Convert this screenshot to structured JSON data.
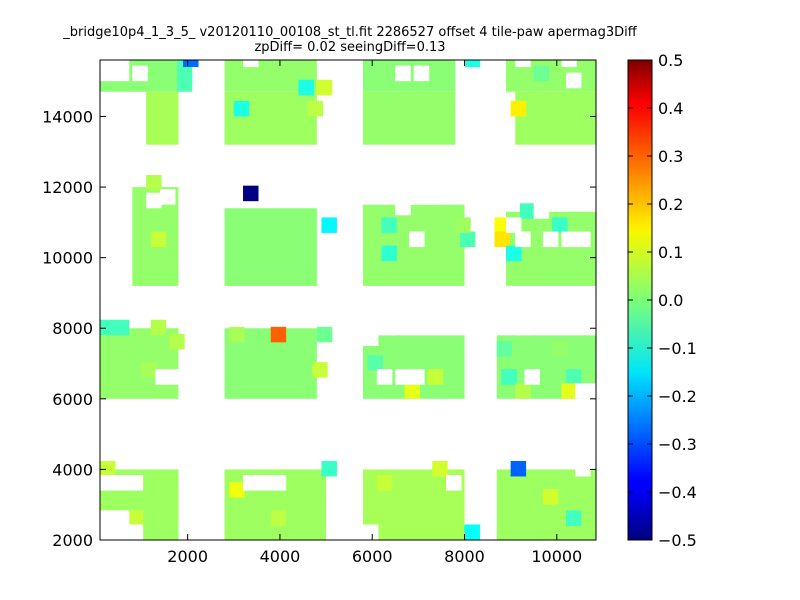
{
  "chart_data": {
    "type": "heatmap",
    "title": "_bridge10p4_1_3_5_ v20120110_00108_st_tl.fit 2286527 offset 4 tile-paw apermag3Diff",
    "subtitle": "zpDiff= 0.02 seeingDiff=0.13",
    "xlabel": "",
    "ylabel": "",
    "xlim": [
      100,
      10850
    ],
    "ylim": [
      2000,
      15600
    ],
    "x_ticks": [
      2000,
      4000,
      6000,
      8000,
      10000
    ],
    "y_ticks": [
      2000,
      4000,
      6000,
      8000,
      10000,
      12000,
      14000
    ],
    "cell_size": [
      335,
      440
    ],
    "colorbar": {
      "vmin": -0.5,
      "vmax": 0.5,
      "colormap": "jet",
      "ticks": [
        "0.5",
        "0.4",
        "0.3",
        "0.2",
        "0.1",
        "0.0",
        "−0.1",
        "−0.2",
        "−0.3",
        "−0.4",
        "−0.5"
      ]
    },
    "blocks": [
      {
        "x": [
          100,
          1770
        ],
        "y": [
          15600,
          14700
        ],
        "value": 0.01
      },
      {
        "x": [
          1770,
          2100
        ],
        "y": [
          15600,
          14700
        ],
        "value": -0.05
      },
      {
        "x": [
          2800,
          4800
        ],
        "y": [
          15600,
          14700
        ],
        "value": 0.02
      },
      {
        "x": [
          5800,
          7800
        ],
        "y": [
          15600,
          14700
        ],
        "value": 0.01
      },
      {
        "x": [
          8900,
          10850
        ],
        "y": [
          15600,
          14700
        ],
        "value": 0.02
      },
      {
        "x": [
          1100,
          1800
        ],
        "y": [
          14700,
          13200
        ],
        "value": 0.04
      },
      {
        "x": [
          2800,
          4800
        ],
        "y": [
          14700,
          13200
        ],
        "value": 0.03
      },
      {
        "x": [
          5800,
          7800
        ],
        "y": [
          14700,
          13200
        ],
        "value": 0.02
      },
      {
        "x": [
          9100,
          10850
        ],
        "y": [
          14700,
          13200
        ],
        "value": 0.03
      },
      {
        "x": [
          800,
          1800
        ],
        "y": [
          12000,
          9200
        ],
        "value": 0.02
      },
      {
        "x": [
          2800,
          4800
        ],
        "y": [
          11400,
          9200
        ],
        "value": 0.01
      },
      {
        "x": [
          5800,
          8000
        ],
        "y": [
          11500,
          9200
        ],
        "value": 0.02
      },
      {
        "x": [
          8900,
          10850
        ],
        "y": [
          11300,
          9200
        ],
        "value": 0.02
      },
      {
        "x": [
          100,
          1800
        ],
        "y": [
          8000,
          6000
        ],
        "value": 0.02
      },
      {
        "x": [
          2800,
          4800
        ],
        "y": [
          8000,
          6000
        ],
        "value": 0.01
      },
      {
        "x": [
          5800,
          8000
        ],
        "y": [
          7800,
          6000
        ],
        "value": 0.01
      },
      {
        "x": [
          8700,
          10850
        ],
        "y": [
          7800,
          6000
        ],
        "value": 0.01
      },
      {
        "x": [
          100,
          1800
        ],
        "y": [
          4000,
          2000
        ],
        "value": 0.03
      },
      {
        "x": [
          2800,
          5000
        ],
        "y": [
          4000,
          2000
        ],
        "value": 0.03
      },
      {
        "x": [
          5800,
          8000
        ],
        "y": [
          4000,
          2000
        ],
        "value": 0.04
      },
      {
        "x": [
          8700,
          10850
        ],
        "y": [
          4000,
          2000
        ],
        "value": 0.03
      }
    ],
    "cells": [
      {
        "x": 1900,
        "y": 15400,
        "value": -0.27
      },
      {
        "x": 3200,
        "y": 11600,
        "value": -0.5
      },
      {
        "x": 3800,
        "y": 7600,
        "value": 0.28
      },
      {
        "x": 9000,
        "y": 3800,
        "value": -0.28
      },
      {
        "x": 3000,
        "y": 14000,
        "value": -0.1
      },
      {
        "x": 4400,
        "y": 14600,
        "value": -0.1
      },
      {
        "x": 4800,
        "y": 14600,
        "value": 0.08
      },
      {
        "x": 4600,
        "y": 14000,
        "value": 0.06
      },
      {
        "x": 8000,
        "y": 15400,
        "value": -0.1
      },
      {
        "x": 9500,
        "y": 15000,
        "value": -0.02
      },
      {
        "x": 9000,
        "y": 14000,
        "value": 0.14
      },
      {
        "x": 4900,
        "y": 10700,
        "value": -0.13
      },
      {
        "x": 8650,
        "y": 10700,
        "value": 0.12
      },
      {
        "x": 8650,
        "y": 10300,
        "value": 0.15
      },
      {
        "x": 8900,
        "y": 9900,
        "value": -0.1
      },
      {
        "x": 9200,
        "y": 11100,
        "value": -0.06
      },
      {
        "x": 9900,
        "y": 10700,
        "value": -0.07
      },
      {
        "x": 6200,
        "y": 10700,
        "value": -0.06
      },
      {
        "x": 6200,
        "y": 9900,
        "value": -0.08
      },
      {
        "x": 7900,
        "y": 10300,
        "value": -0.05
      },
      {
        "x": 7800,
        "y": 10700,
        "value": 0.03
      },
      {
        "x": 1100,
        "y": 11900,
        "value": 0.05
      },
      {
        "x": 1200,
        "y": 10300,
        "value": 0.07
      },
      {
        "x": 100,
        "y": 7800,
        "value": -0.06
      },
      {
        "x": 400,
        "y": 7800,
        "value": -0.06
      },
      {
        "x": 1000,
        "y": 6600,
        "value": 0.04
      },
      {
        "x": 1200,
        "y": 7800,
        "value": 0.05
      },
      {
        "x": 1600,
        "y": 7400,
        "value": 0.05
      },
      {
        "x": 4700,
        "y": 6600,
        "value": 0.07
      },
      {
        "x": 2900,
        "y": 7600,
        "value": 0.04
      },
      {
        "x": 4800,
        "y": 7600,
        "value": -0.02
      },
      {
        "x": 5900,
        "y": 6800,
        "value": -0.04
      },
      {
        "x": 6700,
        "y": 6000,
        "value": 0.1
      },
      {
        "x": 7200,
        "y": 6400,
        "value": 0.07
      },
      {
        "x": 8800,
        "y": 6400,
        "value": -0.06
      },
      {
        "x": 9100,
        "y": 6000,
        "value": 0.05
      },
      {
        "x": 10200,
        "y": 6400,
        "value": -0.05
      },
      {
        "x": 10100,
        "y": 6000,
        "value": 0.1
      },
      {
        "x": 9900,
        "y": 7200,
        "value": 0.02
      },
      {
        "x": 8700,
        "y": 7200,
        "value": -0.03
      },
      {
        "x": 100,
        "y": 3800,
        "value": 0.07
      },
      {
        "x": 4900,
        "y": 3800,
        "value": -0.07
      },
      {
        "x": 2900,
        "y": 3200,
        "value": 0.11
      },
      {
        "x": 7300,
        "y": 3800,
        "value": 0.08
      },
      {
        "x": 8000,
        "y": 2000,
        "value": -0.12
      },
      {
        "x": 10200,
        "y": 2400,
        "value": -0.06
      },
      {
        "x": 700,
        "y": 2400,
        "value": 0.07
      },
      {
        "x": 9700,
        "y": 3000,
        "value": 0.08
      },
      {
        "x": 6100,
        "y": 3400,
        "value": 0.07
      },
      {
        "x": 3800,
        "y": 2400,
        "value": 0.06
      }
    ],
    "gaps": [
      {
        "x": 100,
        "y": 15400
      },
      {
        "x": 400,
        "y": 15400
      },
      {
        "x": 100,
        "y": 15000
      },
      {
        "x": 400,
        "y": 15000
      },
      {
        "x": 800,
        "y": 15000
      },
      {
        "x": 3200,
        "y": 15400
      },
      {
        "x": 6500,
        "y": 15000
      },
      {
        "x": 6900,
        "y": 15000
      },
      {
        "x": 9100,
        "y": 15400
      },
      {
        "x": 10100,
        "y": 15400
      },
      {
        "x": 10200,
        "y": 14800
      },
      {
        "x": 1100,
        "y": 11400
      },
      {
        "x": 1400,
        "y": 11500
      },
      {
        "x": 6700,
        "y": 11500
      },
      {
        "x": 7100,
        "y": 11500
      },
      {
        "x": 6500,
        "y": 11200
      },
      {
        "x": 6800,
        "y": 10300
      },
      {
        "x": 8900,
        "y": 10700
      },
      {
        "x": 9100,
        "y": 10300
      },
      {
        "x": 9700,
        "y": 10300
      },
      {
        "x": 9500,
        "y": 11100
      },
      {
        "x": 10100,
        "y": 10300
      },
      {
        "x": 10400,
        "y": 10300
      },
      {
        "x": 1300,
        "y": 6400
      },
      {
        "x": 1600,
        "y": 6400
      },
      {
        "x": 6100,
        "y": 6400
      },
      {
        "x": 6500,
        "y": 6400
      },
      {
        "x": 6800,
        "y": 6400
      },
      {
        "x": 5800,
        "y": 7500
      },
      {
        "x": 5800,
        "y": 7800
      },
      {
        "x": 6200,
        "y": 7800
      },
      {
        "x": 9300,
        "y": 6400
      },
      {
        "x": 9100,
        "y": 7800
      },
      {
        "x": 10400,
        "y": 6000
      },
      {
        "x": 10700,
        "y": 6000
      },
      {
        "x": 100,
        "y": 2400
      },
      {
        "x": 400,
        "y": 2400
      },
      {
        "x": 100,
        "y": 2000
      },
      {
        "x": 400,
        "y": 2000
      },
      {
        "x": 700,
        "y": 2000
      },
      {
        "x": 100,
        "y": 3400
      },
      {
        "x": 400,
        "y": 3400
      },
      {
        "x": 700,
        "y": 3400
      },
      {
        "x": 3200,
        "y": 3400
      },
      {
        "x": 3500,
        "y": 3400
      },
      {
        "x": 3800,
        "y": 3400
      },
      {
        "x": 5800,
        "y": 2000
      },
      {
        "x": 7600,
        "y": 3400
      },
      {
        "x": 10400,
        "y": 3800
      }
    ]
  }
}
